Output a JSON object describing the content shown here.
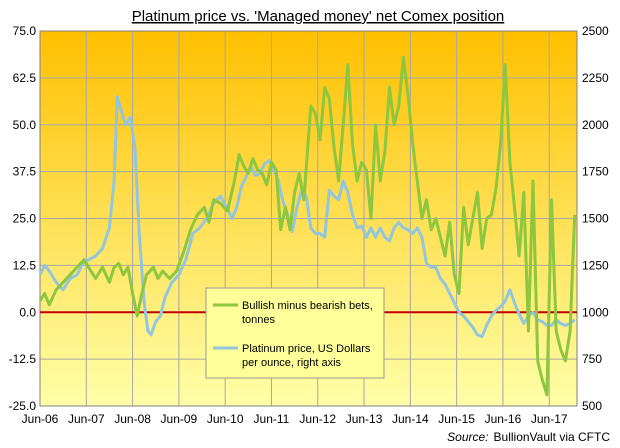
{
  "chart_data": {
    "type": "line",
    "title": "Platinum price vs. 'Managed money' net Comex position",
    "source_label": "Source:",
    "source_value": "BullionVault via CFTC",
    "x_ticks": [
      "Jun-06",
      "Jun-07",
      "Jun-08",
      "Jun-09",
      "Jun-10",
      "Jun-11",
      "Jun-12",
      "Jun-13",
      "Jun-14",
      "Jun-15",
      "Jun-16",
      "Jun-17"
    ],
    "y_left": {
      "min": -25,
      "max": 75,
      "ticks": [
        "-25.0",
        "-12.5",
        "0.0",
        "12.5",
        "25.0",
        "37.5",
        "50.0",
        "62.5",
        "75.0"
      ]
    },
    "y_right": {
      "min": 500,
      "max": 2500,
      "ticks": [
        "500",
        "750",
        "1000",
        "1250",
        "1500",
        "1750",
        "2000",
        "2250",
        "2500"
      ]
    },
    "zero_line_color": "#c00000",
    "background_top": "#ffc000",
    "background_bottom": "#ffffa8",
    "grid": true,
    "legend_position": "center-bottom",
    "series": [
      {
        "name": "Bullish minus bearish bets, tonnes",
        "axis": "left",
        "color": "#8dc63f",
        "points": [
          [
            2006.45,
            3
          ],
          [
            2006.55,
            5
          ],
          [
            2006.65,
            2
          ],
          [
            2006.8,
            6
          ],
          [
            2006.95,
            8
          ],
          [
            2007.1,
            10
          ],
          [
            2007.25,
            12
          ],
          [
            2007.4,
            14
          ],
          [
            2007.5,
            12
          ],
          [
            2007.65,
            9
          ],
          [
            2007.8,
            12
          ],
          [
            2007.95,
            8
          ],
          [
            2008.05,
            12
          ],
          [
            2008.15,
            13
          ],
          [
            2008.25,
            10
          ],
          [
            2008.35,
            12
          ],
          [
            2008.45,
            5
          ],
          [
            2008.55,
            -1
          ],
          [
            2008.65,
            5
          ],
          [
            2008.75,
            10
          ],
          [
            2008.9,
            12
          ],
          [
            2009.0,
            9
          ],
          [
            2009.1,
            11
          ],
          [
            2009.25,
            9
          ],
          [
            2009.4,
            11
          ],
          [
            2009.55,
            16
          ],
          [
            2009.7,
            22
          ],
          [
            2009.85,
            26
          ],
          [
            2010.0,
            28
          ],
          [
            2010.1,
            24
          ],
          [
            2010.2,
            30
          ],
          [
            2010.35,
            29
          ],
          [
            2010.5,
            27
          ],
          [
            2010.65,
            35
          ],
          [
            2010.75,
            42
          ],
          [
            2010.85,
            39
          ],
          [
            2010.95,
            37
          ],
          [
            2011.05,
            41
          ],
          [
            2011.15,
            38
          ],
          [
            2011.25,
            37
          ],
          [
            2011.35,
            34
          ],
          [
            2011.45,
            40
          ],
          [
            2011.55,
            38
          ],
          [
            2011.65,
            22
          ],
          [
            2011.75,
            28
          ],
          [
            2011.85,
            22
          ],
          [
            2011.95,
            32
          ],
          [
            2012.05,
            37
          ],
          [
            2012.15,
            30
          ],
          [
            2012.3,
            55
          ],
          [
            2012.4,
            53
          ],
          [
            2012.5,
            46
          ],
          [
            2012.6,
            60
          ],
          [
            2012.7,
            57
          ],
          [
            2012.8,
            44
          ],
          [
            2012.9,
            35
          ],
          [
            2013.0,
            50
          ],
          [
            2013.1,
            66
          ],
          [
            2013.2,
            45
          ],
          [
            2013.3,
            35
          ],
          [
            2013.4,
            40
          ],
          [
            2013.5,
            38
          ],
          [
            2013.6,
            25
          ],
          [
            2013.7,
            50
          ],
          [
            2013.8,
            35
          ],
          [
            2013.9,
            43
          ],
          [
            2014.0,
            60
          ],
          [
            2014.1,
            50
          ],
          [
            2014.2,
            55
          ],
          [
            2014.3,
            68
          ],
          [
            2014.4,
            58
          ],
          [
            2014.5,
            45
          ],
          [
            2014.6,
            35
          ],
          [
            2014.7,
            25
          ],
          [
            2014.8,
            30
          ],
          [
            2014.9,
            22
          ],
          [
            2015.0,
            25
          ],
          [
            2015.1,
            20
          ],
          [
            2015.2,
            15
          ],
          [
            2015.3,
            24
          ],
          [
            2015.4,
            10
          ],
          [
            2015.5,
            5
          ],
          [
            2015.6,
            28
          ],
          [
            2015.7,
            18
          ],
          [
            2015.8,
            25
          ],
          [
            2015.9,
            32
          ],
          [
            2016.0,
            17
          ],
          [
            2016.1,
            25
          ],
          [
            2016.2,
            26
          ],
          [
            2016.3,
            33
          ],
          [
            2016.4,
            45
          ],
          [
            2016.5,
            66
          ],
          [
            2016.6,
            40
          ],
          [
            2016.7,
            28
          ],
          [
            2016.8,
            15
          ],
          [
            2016.9,
            32
          ],
          [
            2017.0,
            -5
          ],
          [
            2017.1,
            35
          ],
          [
            2017.2,
            -13
          ],
          [
            2017.3,
            -18
          ],
          [
            2017.4,
            -22
          ],
          [
            2017.5,
            30
          ],
          [
            2017.6,
            -5
          ],
          [
            2017.7,
            -10
          ],
          [
            2017.8,
            -13
          ],
          [
            2017.9,
            -5
          ],
          [
            2018.0,
            26
          ]
        ]
      },
      {
        "name": "Platinum price, US Dollars per ounce, right axis",
        "axis": "right",
        "color": "#92c5de",
        "points": [
          [
            2006.45,
            1200
          ],
          [
            2006.55,
            1250
          ],
          [
            2006.65,
            1220
          ],
          [
            2006.8,
            1160
          ],
          [
            2006.95,
            1120
          ],
          [
            2007.1,
            1180
          ],
          [
            2007.25,
            1200
          ],
          [
            2007.4,
            1270
          ],
          [
            2007.5,
            1280
          ],
          [
            2007.65,
            1300
          ],
          [
            2007.8,
            1340
          ],
          [
            2007.95,
            1450
          ],
          [
            2008.05,
            1700
          ],
          [
            2008.12,
            2150
          ],
          [
            2008.2,
            2080
          ],
          [
            2008.3,
            2000
          ],
          [
            2008.4,
            2040
          ],
          [
            2008.5,
            1880
          ],
          [
            2008.6,
            1400
          ],
          [
            2008.7,
            1050
          ],
          [
            2008.78,
            900
          ],
          [
            2008.85,
            880
          ],
          [
            2008.95,
            950
          ],
          [
            2009.05,
            980
          ],
          [
            2009.15,
            1080
          ],
          [
            2009.3,
            1160
          ],
          [
            2009.45,
            1200
          ],
          [
            2009.6,
            1280
          ],
          [
            2009.75,
            1420
          ],
          [
            2009.9,
            1450
          ],
          [
            2010.05,
            1500
          ],
          [
            2010.2,
            1580
          ],
          [
            2010.35,
            1620
          ],
          [
            2010.5,
            1550
          ],
          [
            2010.6,
            1500
          ],
          [
            2010.7,
            1560
          ],
          [
            2010.8,
            1670
          ],
          [
            2010.9,
            1720
          ],
          [
            2011.0,
            1780
          ],
          [
            2011.1,
            1730
          ],
          [
            2011.2,
            1740
          ],
          [
            2011.3,
            1790
          ],
          [
            2011.4,
            1810
          ],
          [
            2011.5,
            1760
          ],
          [
            2011.6,
            1700
          ],
          [
            2011.7,
            1590
          ],
          [
            2011.8,
            1520
          ],
          [
            2011.9,
            1430
          ],
          [
            2012.0,
            1560
          ],
          [
            2012.1,
            1650
          ],
          [
            2012.2,
            1620
          ],
          [
            2012.3,
            1450
          ],
          [
            2012.4,
            1420
          ],
          [
            2012.5,
            1420
          ],
          [
            2012.6,
            1400
          ],
          [
            2012.7,
            1650
          ],
          [
            2012.8,
            1620
          ],
          [
            2012.9,
            1600
          ],
          [
            2013.0,
            1700
          ],
          [
            2013.1,
            1640
          ],
          [
            2013.2,
            1520
          ],
          [
            2013.3,
            1450
          ],
          [
            2013.4,
            1460
          ],
          [
            2013.5,
            1400
          ],
          [
            2013.6,
            1450
          ],
          [
            2013.7,
            1400
          ],
          [
            2013.8,
            1450
          ],
          [
            2013.9,
            1400
          ],
          [
            2014.0,
            1380
          ],
          [
            2014.1,
            1450
          ],
          [
            2014.2,
            1480
          ],
          [
            2014.3,
            1450
          ],
          [
            2014.4,
            1440
          ],
          [
            2014.5,
            1420
          ],
          [
            2014.6,
            1450
          ],
          [
            2014.7,
            1400
          ],
          [
            2014.8,
            1260
          ],
          [
            2014.9,
            1240
          ],
          [
            2015.0,
            1240
          ],
          [
            2015.1,
            1180
          ],
          [
            2015.2,
            1150
          ],
          [
            2015.3,
            1100
          ],
          [
            2015.4,
            1050
          ],
          [
            2015.5,
            1000
          ],
          [
            2015.6,
            980
          ],
          [
            2015.7,
            950
          ],
          [
            2015.8,
            920
          ],
          [
            2015.9,
            880
          ],
          [
            2016.0,
            870
          ],
          [
            2016.1,
            930
          ],
          [
            2016.2,
            980
          ],
          [
            2016.3,
            1010
          ],
          [
            2016.4,
            1030
          ],
          [
            2016.5,
            1060
          ],
          [
            2016.6,
            1120
          ],
          [
            2016.7,
            1050
          ],
          [
            2016.8,
            990
          ],
          [
            2016.9,
            940
          ],
          [
            2017.0,
            980
          ],
          [
            2017.1,
            1000
          ],
          [
            2017.2,
            960
          ],
          [
            2017.3,
            950
          ],
          [
            2017.4,
            930
          ],
          [
            2017.5,
            930
          ],
          [
            2017.6,
            960
          ],
          [
            2017.7,
            940
          ],
          [
            2017.8,
            930
          ],
          [
            2017.9,
            940
          ],
          [
            2018.0,
            960
          ]
        ]
      }
    ]
  }
}
